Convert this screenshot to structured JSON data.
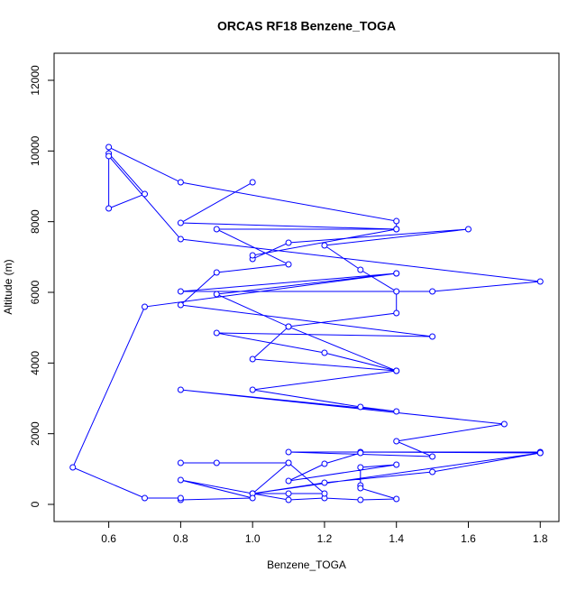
{
  "chart_data": {
    "type": "line",
    "markers": true,
    "title": "ORCAS RF18 Benzene_TOGA",
    "xlabel": "Benzene_TOGA",
    "ylabel": "Altitude (m)",
    "color": "#0000ff",
    "x": [
      1.0,
      0.8,
      1.4,
      1.4,
      0.8,
      0.6,
      0.6,
      0.7,
      0.6,
      0.6,
      0.8,
      1.8,
      1.5,
      0.8,
      1.4,
      0.9,
      1.1,
      1.4,
      1.4,
      1.3,
      1.2,
      1.6,
      1.1,
      1.0,
      1.0,
      1.4,
      0.9,
      1.1,
      0.9,
      0.8,
      1.5,
      0.9,
      1.2,
      1.4,
      1.0,
      1.1,
      1.4,
      1.0,
      1.3,
      1.4,
      0.8,
      1.7,
      1.4,
      1.5,
      1.1,
      1.8,
      1.8,
      1.3,
      1.3,
      1.2,
      1.1,
      1.4,
      1.3,
      1.3,
      1.3,
      1.4,
      1.3,
      1.2,
      1.1,
      1.0,
      1.1,
      1.2,
      1.1,
      0.9,
      0.8,
      1.1,
      1.0,
      1.8,
      1.5,
      1.2,
      1.0,
      0.8,
      1.0,
      0.8,
      0.8,
      0.7,
      0.5,
      0.7,
      1.4
    ],
    "y": [
      9114,
      7965,
      7787,
      8016,
      9114,
      10110,
      9930,
      8782,
      8374,
      9855,
      7506,
      6306,
      6025,
      6025,
      6536,
      5948,
      5029,
      5412,
      6025,
      6638,
      7327,
      7787,
      7404,
      6944,
      7046,
      7787,
      7787,
      6791,
      6561,
      5642,
      4749,
      4851,
      4289,
      3778,
      4110,
      5029,
      3778,
      3242,
      2757,
      2630,
      3242,
      2272,
      1787,
      1353,
      1481,
      1481,
      1455,
      1481,
      1455,
      1149,
      664,
      1123,
      1047,
      536,
      460,
      153,
      128,
      179,
      128,
      306,
      306,
      306,
      1174,
      1174,
      1174,
      1174,
      306,
      1455,
      919,
      613,
      306,
      689,
      179,
      128,
      179,
      179,
      1047,
      5591,
      6536
    ],
    "xlim": [
      0.448,
      1.852
    ],
    "ylim": [
      -485,
      12766
    ],
    "xticks": [
      0.6,
      0.8,
      {
        "value": 1,
        "label": "1.0"
      },
      1.2,
      1.4,
      1.6,
      1.8
    ],
    "yticks": [
      0,
      2000,
      4000,
      6000,
      8000,
      10000,
      12000
    ]
  }
}
